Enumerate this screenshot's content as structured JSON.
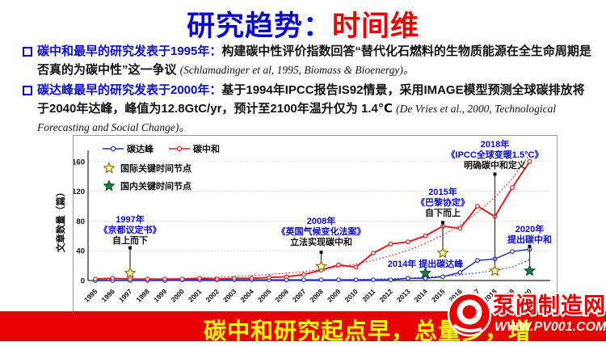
{
  "title": {
    "part1": "研究趋势：",
    "part2": "时间维"
  },
  "bullets": [
    {
      "heading": "碳中和最早的研究发表于1995年：",
      "body": "构建碳中性评价指数回答“替代化石燃料的生物质能源在全生命周期是否真的为碳中性”这一争议 ",
      "citation": "(Schlamadinger et al, 1995, Biomass & Bioenergy)。"
    },
    {
      "heading": "碳达峰最早的研究发表于2000年：",
      "body": "基于1994年IPCC报告IS92情景，采用IMAGE模型预测全球碳排放将于2040年达峰，峰值为12.8GtC/yr，预计至2100年温升仅为 1.4℃ ",
      "citation": "(De Vries et al., 2000, Technological Forecasting and Social Change)。"
    }
  ],
  "chart_data": {
    "type": "line",
    "ylabel": "文章数量（篇）",
    "ylim": [
      0,
      180
    ],
    "yticks": [
      0,
      40,
      80,
      120,
      160
    ],
    "x": [
      1995,
      1996,
      1997,
      1998,
      1999,
      2000,
      2001,
      2002,
      2003,
      2004,
      2005,
      2006,
      2007,
      2008,
      2009,
      2010,
      2011,
      2012,
      2013,
      2014,
      2015,
      2016,
      2017,
      2018,
      2019,
      2020
    ],
    "series": [
      {
        "name": "碳达峰",
        "color": "#2031c8",
        "width": 1.5,
        "values": [
          0,
          0,
          0,
          0,
          0,
          1,
          1,
          1,
          1,
          1,
          1,
          1,
          1,
          1,
          1,
          1,
          1,
          1,
          3,
          3,
          5,
          11,
          27,
          29,
          39,
          42
        ],
        "trend": [
          0,
          0,
          0,
          0,
          0,
          0.1,
          0.15,
          0.2,
          0.3,
          0.35,
          0.45,
          0.55,
          0.7,
          0.9,
          1.1,
          1.4,
          1.9,
          2.5,
          3.3,
          4.4,
          5.8,
          7.7,
          10.2,
          13.6,
          18,
          28
        ]
      },
      {
        "name": "碳中和",
        "color": "#e02020",
        "width": 2,
        "values": [
          2,
          3,
          2,
          2,
          2,
          2,
          3,
          2,
          3,
          3,
          4,
          5,
          8,
          14,
          21,
          18,
          37,
          49,
          52,
          60,
          73,
          70,
          100,
          86,
          125,
          160
        ],
        "trend": [
          1.1,
          1.3,
          1.6,
          2,
          2.4,
          3,
          3.6,
          4.4,
          5.4,
          6.6,
          8.1,
          9.9,
          12.1,
          14.8,
          18.1,
          22.2,
          27.2,
          33.3,
          40.7,
          49.9,
          61,
          74.7,
          91.4,
          112,
          137,
          170
        ]
      }
    ],
    "legend": [
      {
        "label": "碳达峰",
        "type": "line",
        "color": "#2031c8"
      },
      {
        "label": "碳中和",
        "type": "line",
        "color": "#e02020"
      },
      {
        "label": "国际关键时间节点",
        "type": "star",
        "style": "intl"
      },
      {
        "label": "国内关键时间节点",
        "type": "star",
        "style": "domestic"
      }
    ],
    "star_styles": {
      "intl": {
        "fill": "#fdf3a0",
        "stroke": "#7d6b08"
      },
      "domestic": {
        "fill": "#1d8044",
        "stroke": "#0a4d26"
      }
    },
    "annotations": [
      {
        "year": 1997,
        "lines": [
          "1997年",
          "《京都议定书》",
          "自上而下"
        ],
        "colors": [
          "#0a0ad0",
          "#0a0ad0",
          "#111"
        ],
        "star": "intl",
        "star_value": 10,
        "dot_value": 44,
        "text_top": 107
      },
      {
        "year": 2008,
        "lines": [
          "2008年",
          "《英国气候变化法案》",
          "立法实现碳中和"
        ],
        "colors": [
          "#0a0ad0",
          "#0a0ad0",
          "#111"
        ],
        "star": "intl",
        "star_value": 19,
        "dot_value": 38,
        "text_top": 109
      },
      {
        "year": 2015,
        "lines": [
          "2015年",
          "《巴黎协定》",
          "自下而上"
        ],
        "colors": [
          "#0a0ad0",
          "#0a0ad0",
          "#111"
        ],
        "star": "intl",
        "star_value": 37,
        "dot_value": 78,
        "text_top": 73
      },
      {
        "year": 2018,
        "lines": [
          "2018年",
          "《IPCC全球变暖1.5°C》",
          "明确碳中和定义"
        ],
        "colors": [
          "#0a0ad0",
          "#0a0ad0",
          "#111"
        ],
        "star": "intl",
        "star_value": 13,
        "dot_value": 143,
        "text_top": 14
      },
      {
        "year": 2020,
        "lines": [
          "2020年",
          "提出碳中和"
        ],
        "colors": [
          "#0a0ad0",
          "#0a0ad0"
        ],
        "star": "domestic",
        "star_value": 13,
        "dot_value": 46,
        "text_top": 119
      },
      {
        "year": 2014,
        "lines": [
          "2014年 提出碳达峰"
        ],
        "colors": [
          "#0a0ad0"
        ],
        "star": "domestic",
        "star_value": 10,
        "dot_value": null,
        "text_top": 162
      }
    ]
  },
  "banner": {
    "text": "碳中和研究起点早，总量多，增",
    "bg": "#e60000",
    "color": "#ffff00"
  },
  "logo": {
    "name": "泵阀制造网",
    "url": "WWW.PV001.COM"
  }
}
